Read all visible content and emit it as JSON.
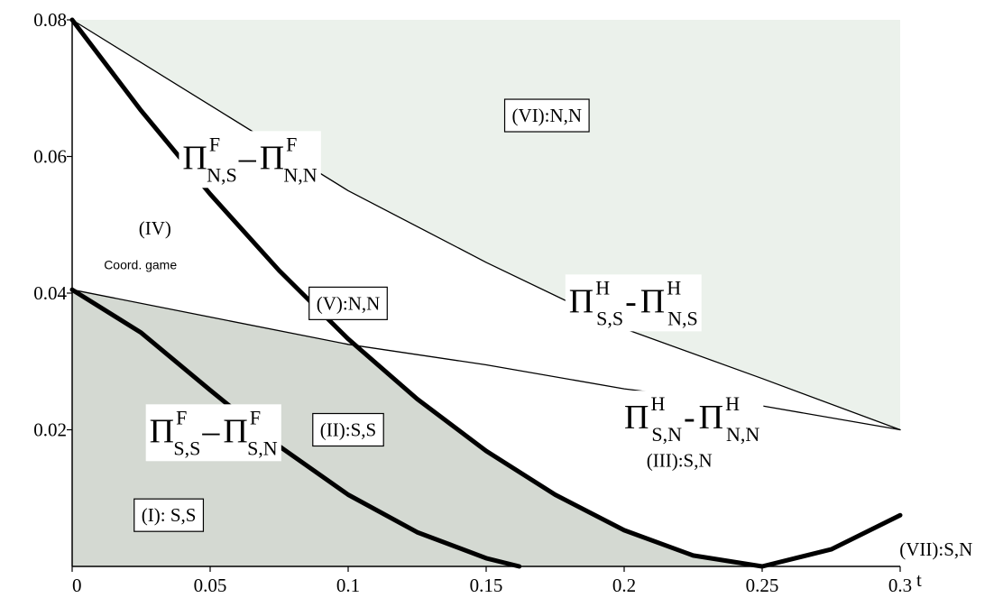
{
  "chart_data": {
    "type": "area",
    "title": "",
    "xlabel": "t",
    "ylabel": "",
    "xlim": [
      0,
      0.3
    ],
    "ylim": [
      0,
      0.08
    ],
    "x_ticks": [
      "0",
      "0.05",
      "0.1",
      "0.15",
      "0.2",
      "0.25",
      "0.3"
    ],
    "y_ticks": [
      "0.02",
      "0.04",
      "0.06",
      "0.08"
    ],
    "grid": false,
    "colors": {
      "shaded_dark": "#d4d9d2",
      "shaded_light": "#ebf1eb",
      "curve": "#000000"
    },
    "series": [
      {
        "label": "Π^F_{N,S} − Π^F_{N,N}",
        "style": "thick",
        "x": [
          0,
          0.025,
          0.05,
          0.075,
          0.1,
          0.125,
          0.15,
          0.175,
          0.2,
          0.225,
          0.25,
          0.275,
          0.3
        ],
        "y": [
          0.08,
          0.0667,
          0.0545,
          0.0433,
          0.0333,
          0.0245,
          0.0169,
          0.0105,
          0.0053,
          0.0016,
          0.0,
          0.0025,
          0.0075
        ]
      },
      {
        "label": "Π^F_{S,S} − Π^F_{S,N}",
        "style": "thick",
        "x": [
          0,
          0.025,
          0.05,
          0.075,
          0.1,
          0.125,
          0.15,
          0.162
        ],
        "y": [
          0.0405,
          0.0342,
          0.0258,
          0.0176,
          0.0105,
          0.005,
          0.0012,
          0.0
        ]
      },
      {
        "label": "Π^H_{S,S} − Π^H_{N,S}",
        "style": "thin",
        "x": [
          0,
          0.05,
          0.1,
          0.15,
          0.2,
          0.25,
          0.3
        ],
        "y": [
          0.08,
          0.0675,
          0.055,
          0.0445,
          0.0348,
          0.0275,
          0.02
        ]
      },
      {
        "label": "Π^H_{S,N} − Π^H_{N,N}",
        "style": "thin",
        "x": [
          0,
          0.05,
          0.1,
          0.15,
          0.2,
          0.25,
          0.3
        ],
        "y": [
          0.0405,
          0.0365,
          0.0325,
          0.0295,
          0.026,
          0.0235,
          0.02
        ]
      }
    ],
    "regions": [
      {
        "label": "(I): S,S",
        "x": 0.035,
        "y": 0.0075,
        "boxed": true
      },
      {
        "label": "(II):S,S",
        "x": 0.1,
        "y": 0.02,
        "boxed": true
      },
      {
        "label": "(III):S,N",
        "x": 0.22,
        "y": 0.0155,
        "boxed": false
      },
      {
        "label": "(IV)",
        "x": 0.03,
        "y": 0.0495,
        "boxed": false
      },
      {
        "label": "(V):N,N",
        "x": 0.1,
        "y": 0.0385,
        "boxed": true
      },
      {
        "label": "(VI):N,N",
        "x": 0.172,
        "y": 0.066,
        "boxed": true
      },
      {
        "label": "(VII):S,N",
        "x": 0.313,
        "y": 0.0025,
        "boxed": false
      }
    ],
    "annotation": "Coord. game",
    "curve_labels": [
      {
        "pi": "Π",
        "sup1": "F",
        "sub1": "N,S",
        "op": "–",
        "pi2": "Π",
        "sup2": "F",
        "sub2": "N,N",
        "x": 0.04,
        "y": 0.0595
      },
      {
        "pi": "Π",
        "sup1": "F",
        "sub1": "S,S",
        "op": "–",
        "pi2": "Π",
        "sup2": "F",
        "sub2": "S,N",
        "x": 0.028,
        "y": 0.0195
      },
      {
        "pi": "Π",
        "sup1": "H",
        "sub1": "S,S",
        "op": "-",
        "pi2": "Π",
        "sup2": "H",
        "sub2": "N,S",
        "x": 0.18,
        "y": 0.0385
      },
      {
        "pi": "Π",
        "sup1": "H",
        "sub1": "S,N",
        "op": "-",
        "pi2": "Π",
        "sup2": "H",
        "sub2": "N,N",
        "x": 0.2,
        "y": 0.0215
      }
    ]
  }
}
